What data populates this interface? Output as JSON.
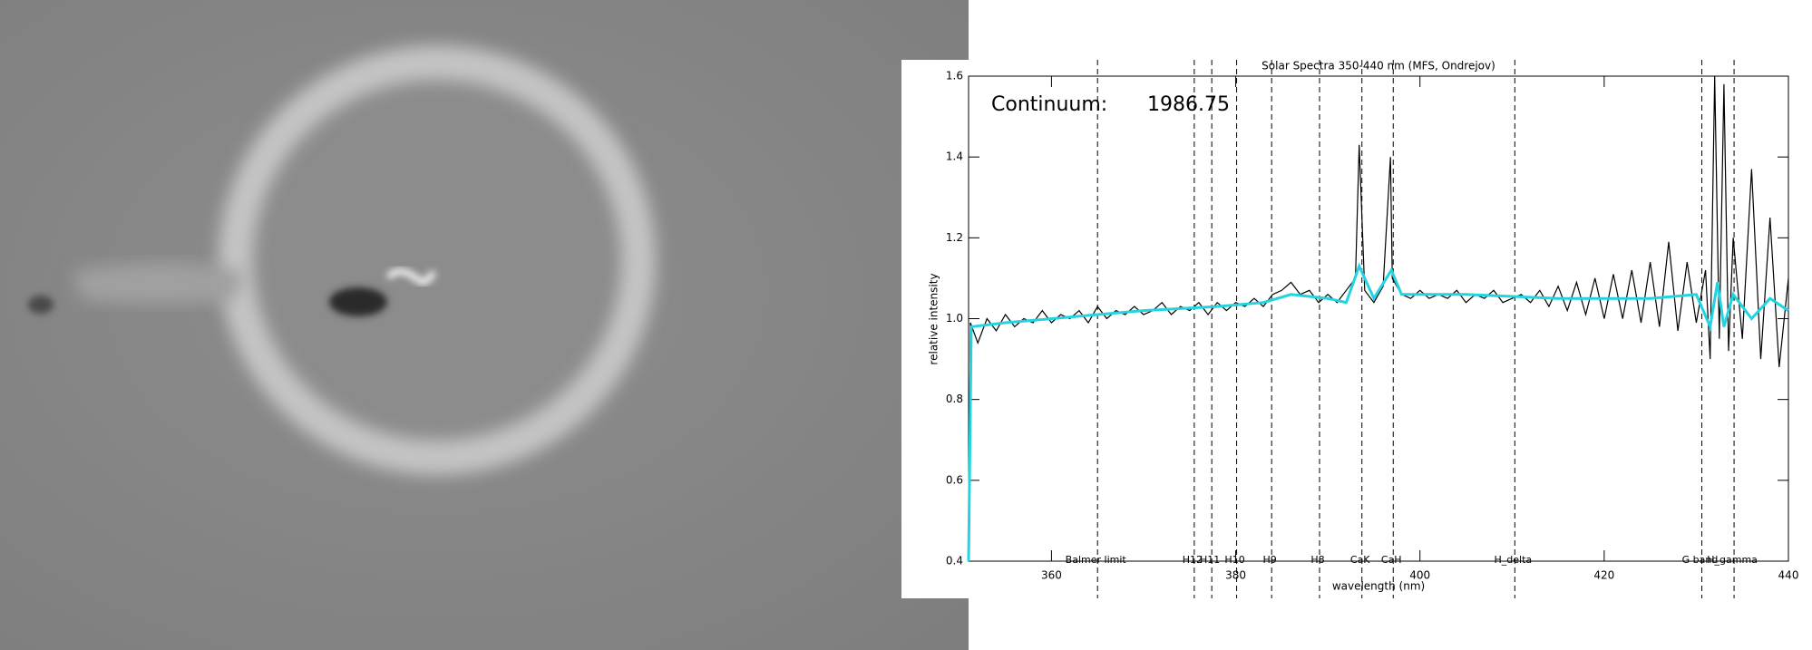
{
  "chart_data": {
    "type": "line",
    "title": "Solar Spectra 350-440 nm (MFS, Ondrejov)",
    "xlabel": "wavelength (nm)",
    "ylabel": "relative intensity",
    "annotations": [
      "Continuum:",
      "1986.75"
    ],
    "xlim": [
      351,
      440
    ],
    "ylim": [
      0.4,
      1.6
    ],
    "xticks": [
      360,
      380,
      400,
      420,
      440
    ],
    "yticks": [
      0.4,
      0.6,
      0.8,
      {
        "value": 1,
        "label": "1.0"
      },
      1.2,
      1.4,
      1.6
    ],
    "lines": [
      {
        "label": "Balmer limit",
        "x": 365.0
      },
      {
        "label": "H12",
        "x": 375.5
      },
      {
        "label": "H11",
        "x": 377.4
      },
      {
        "label": "H10",
        "x": 380.1
      },
      {
        "label": "H9",
        "x": 383.9
      },
      {
        "label": "H8",
        "x": 389.1
      },
      {
        "label": "CaK",
        "x": 393.7
      },
      {
        "label": "CaH",
        "x": 397.1
      },
      {
        "label": "H_delta",
        "x": 410.3
      },
      {
        "label": "G band",
        "x": 430.6
      },
      {
        "label": "H_gamma",
        "x": 434.1
      }
    ],
    "series": [
      {
        "color": "#000000",
        "x": [
          351,
          351.2,
          352,
          353,
          354,
          355,
          356,
          357,
          358,
          359,
          360,
          361,
          362,
          363,
          364,
          365,
          366,
          367,
          368,
          369,
          370,
          371,
          372,
          373,
          374,
          375,
          376,
          377,
          378,
          379,
          380,
          381,
          382,
          383,
          384,
          385,
          386,
          387,
          388,
          389,
          390,
          391,
          392,
          393,
          393.4,
          394,
          395,
          396,
          396.8,
          397,
          398,
          399,
          400,
          401,
          402,
          403,
          404,
          405,
          406,
          407,
          408,
          409,
          410,
          411,
          412,
          413,
          414,
          415,
          416,
          417,
          418,
          419,
          420,
          421,
          422,
          423,
          424,
          425,
          426,
          427,
          428,
          429,
          430,
          431,
          431.5,
          432,
          432.5,
          433,
          433.5,
          434,
          435,
          436,
          437,
          438,
          439,
          440
        ],
        "values": [
          0.4,
          0.99,
          0.94,
          1.0,
          0.97,
          1.01,
          0.98,
          1.0,
          0.99,
          1.02,
          0.99,
          1.01,
          1.0,
          1.02,
          0.99,
          1.03,
          1.0,
          1.02,
          1.01,
          1.03,
          1.01,
          1.02,
          1.04,
          1.01,
          1.03,
          1.02,
          1.04,
          1.01,
          1.04,
          1.02,
          1.04,
          1.03,
          1.05,
          1.03,
          1.06,
          1.07,
          1.09,
          1.06,
          1.07,
          1.04,
          1.06,
          1.04,
          1.07,
          1.1,
          1.43,
          1.07,
          1.04,
          1.08,
          1.4,
          1.1,
          1.06,
          1.05,
          1.07,
          1.05,
          1.06,
          1.05,
          1.07,
          1.04,
          1.06,
          1.05,
          1.07,
          1.04,
          1.05,
          1.06,
          1.04,
          1.07,
          1.03,
          1.08,
          1.02,
          1.09,
          1.01,
          1.1,
          1.0,
          1.11,
          1.0,
          1.12,
          0.99,
          1.14,
          0.98,
          1.19,
          0.97,
          1.14,
          0.99,
          1.12,
          0.9,
          1.6,
          0.95,
          1.58,
          0.92,
          1.2,
          0.95,
          1.37,
          0.9,
          1.25,
          0.88,
          1.1
        ]
      },
      {
        "color": "#22d3e0",
        "x": [
          351,
          351.3,
          355,
          365,
          370,
          378,
          383,
          386,
          390,
          392,
          393.4,
          395,
          396.9,
          398,
          405,
          415,
          425,
          430,
          431.5,
          432.3,
          433,
          434,
          436,
          438,
          440
        ],
        "values": [
          0.4,
          0.98,
          0.99,
          1.01,
          1.02,
          1.03,
          1.04,
          1.06,
          1.05,
          1.04,
          1.13,
          1.05,
          1.12,
          1.06,
          1.06,
          1.05,
          1.05,
          1.06,
          0.98,
          1.09,
          0.98,
          1.06,
          1.0,
          1.05,
          1.02
        ]
      }
    ]
  }
}
